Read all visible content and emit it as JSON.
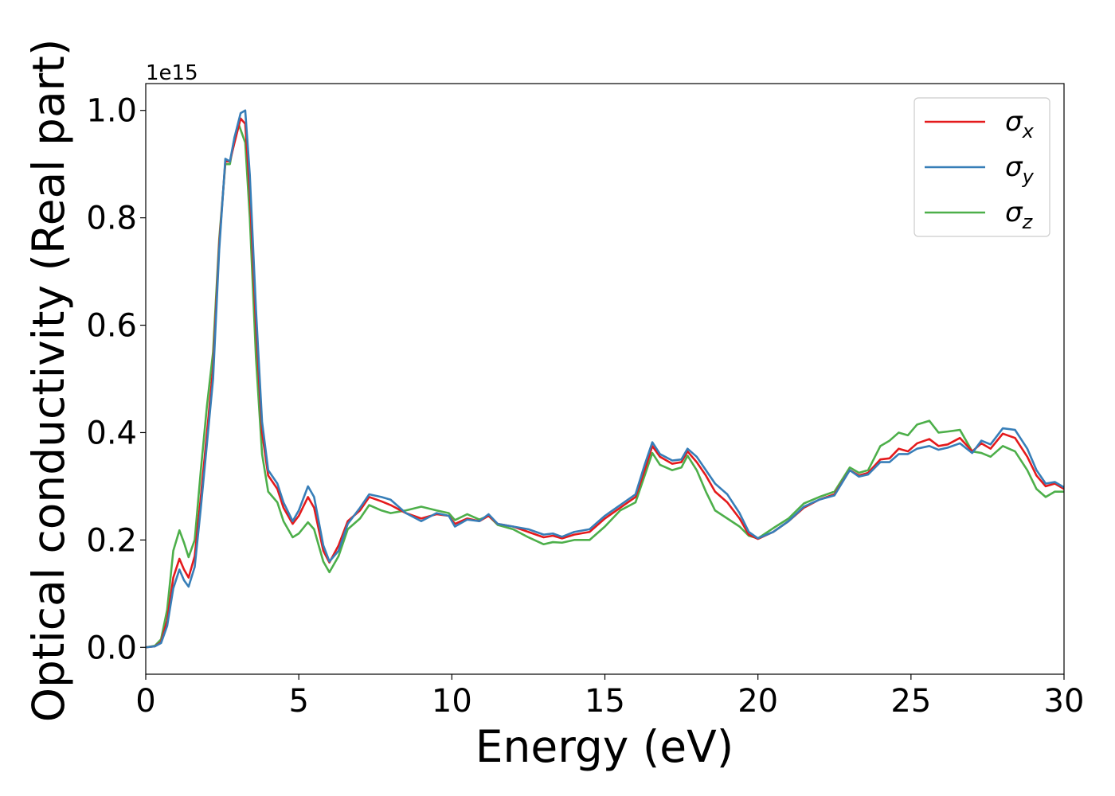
{
  "chart_data": {
    "type": "line",
    "title": "",
    "xlabel": "Energy (eV)",
    "ylabel": "Optical conductivity (Real part)",
    "y_offset_label": "1e15",
    "xlim": [
      0,
      30
    ],
    "ylim": [
      -0.05,
      1.05
    ],
    "x_ticks": [
      0,
      5,
      10,
      15,
      20,
      25,
      30
    ],
    "x_tick_labels": [
      "0",
      "5",
      "10",
      "15",
      "20",
      "25",
      "30"
    ],
    "y_ticks": [
      0.0,
      0.2,
      0.4,
      0.6,
      0.8,
      1.0
    ],
    "y_tick_labels": [
      "0.0",
      "0.2",
      "0.4",
      "0.6",
      "0.8",
      "1.0"
    ],
    "grid": false,
    "legend_position": "top-right",
    "series": [
      {
        "name": "σx",
        "symbol": "σ",
        "subscript": "x",
        "color": "#e41a1c",
        "points": [
          [
            0,
            0
          ],
          [
            0.3,
            0.002
          ],
          [
            0.5,
            0.01
          ],
          [
            0.7,
            0.05
          ],
          [
            0.9,
            0.13
          ],
          [
            1.1,
            0.165
          ],
          [
            1.25,
            0.145
          ],
          [
            1.4,
            0.13
          ],
          [
            1.6,
            0.17
          ],
          [
            1.8,
            0.28
          ],
          [
            2.0,
            0.4
          ],
          [
            2.2,
            0.52
          ],
          [
            2.4,
            0.75
          ],
          [
            2.6,
            0.905
          ],
          [
            2.75,
            0.905
          ],
          [
            2.9,
            0.94
          ],
          [
            3.1,
            0.985
          ],
          [
            3.25,
            0.975
          ],
          [
            3.4,
            0.85
          ],
          [
            3.6,
            0.6
          ],
          [
            3.8,
            0.4
          ],
          [
            4.0,
            0.32
          ],
          [
            4.3,
            0.295
          ],
          [
            4.5,
            0.26
          ],
          [
            4.8,
            0.23
          ],
          [
            5.0,
            0.245
          ],
          [
            5.3,
            0.28
          ],
          [
            5.5,
            0.26
          ],
          [
            5.8,
            0.18
          ],
          [
            6.0,
            0.158
          ],
          [
            6.3,
            0.19
          ],
          [
            6.6,
            0.235
          ],
          [
            7.0,
            0.255
          ],
          [
            7.3,
            0.28
          ],
          [
            7.7,
            0.272
          ],
          [
            8.0,
            0.265
          ],
          [
            8.5,
            0.25
          ],
          [
            9.0,
            0.24
          ],
          [
            9.5,
            0.248
          ],
          [
            9.9,
            0.245
          ],
          [
            10.1,
            0.23
          ],
          [
            10.5,
            0.24
          ],
          [
            10.9,
            0.235
          ],
          [
            11.2,
            0.245
          ],
          [
            11.5,
            0.23
          ],
          [
            12.0,
            0.225
          ],
          [
            12.5,
            0.215
          ],
          [
            13.0,
            0.205
          ],
          [
            13.3,
            0.208
          ],
          [
            13.6,
            0.203
          ],
          [
            14.0,
            0.21
          ],
          [
            14.5,
            0.215
          ],
          [
            15.0,
            0.24
          ],
          [
            15.5,
            0.26
          ],
          [
            16.0,
            0.28
          ],
          [
            16.3,
            0.33
          ],
          [
            16.55,
            0.375
          ],
          [
            16.8,
            0.355
          ],
          [
            17.2,
            0.342
          ],
          [
            17.5,
            0.345
          ],
          [
            17.7,
            0.365
          ],
          [
            18.0,
            0.345
          ],
          [
            18.3,
            0.32
          ],
          [
            18.6,
            0.29
          ],
          [
            19.0,
            0.27
          ],
          [
            19.4,
            0.24
          ],
          [
            19.7,
            0.21
          ],
          [
            20.0,
            0.202
          ],
          [
            20.5,
            0.215
          ],
          [
            21.0,
            0.235
          ],
          [
            21.5,
            0.26
          ],
          [
            22.0,
            0.275
          ],
          [
            22.5,
            0.285
          ],
          [
            23.0,
            0.33
          ],
          [
            23.3,
            0.32
          ],
          [
            23.6,
            0.325
          ],
          [
            24.0,
            0.35
          ],
          [
            24.3,
            0.352
          ],
          [
            24.6,
            0.37
          ],
          [
            24.9,
            0.365
          ],
          [
            25.2,
            0.38
          ],
          [
            25.6,
            0.388
          ],
          [
            25.9,
            0.375
          ],
          [
            26.2,
            0.378
          ],
          [
            26.6,
            0.39
          ],
          [
            27.0,
            0.365
          ],
          [
            27.3,
            0.38
          ],
          [
            27.6,
            0.37
          ],
          [
            28.0,
            0.398
          ],
          [
            28.4,
            0.39
          ],
          [
            28.8,
            0.355
          ],
          [
            29.1,
            0.32
          ],
          [
            29.4,
            0.3
          ],
          [
            29.7,
            0.305
          ],
          [
            30.0,
            0.295
          ]
        ]
      },
      {
        "name": "σy",
        "symbol": "σ",
        "subscript": "y",
        "color": "#377eb8",
        "points": [
          [
            0,
            0
          ],
          [
            0.3,
            0.002
          ],
          [
            0.5,
            0.008
          ],
          [
            0.7,
            0.04
          ],
          [
            0.9,
            0.11
          ],
          [
            1.1,
            0.145
          ],
          [
            1.25,
            0.125
          ],
          [
            1.4,
            0.113
          ],
          [
            1.6,
            0.15
          ],
          [
            1.8,
            0.26
          ],
          [
            2.0,
            0.38
          ],
          [
            2.2,
            0.5
          ],
          [
            2.4,
            0.74
          ],
          [
            2.6,
            0.91
          ],
          [
            2.75,
            0.905
          ],
          [
            2.9,
            0.95
          ],
          [
            3.1,
            0.995
          ],
          [
            3.25,
            1.0
          ],
          [
            3.4,
            0.88
          ],
          [
            3.6,
            0.63
          ],
          [
            3.8,
            0.42
          ],
          [
            4.0,
            0.33
          ],
          [
            4.3,
            0.305
          ],
          [
            4.5,
            0.27
          ],
          [
            4.8,
            0.235
          ],
          [
            5.0,
            0.255
          ],
          [
            5.3,
            0.3
          ],
          [
            5.5,
            0.28
          ],
          [
            5.8,
            0.19
          ],
          [
            6.0,
            0.16
          ],
          [
            6.3,
            0.18
          ],
          [
            6.6,
            0.23
          ],
          [
            7.0,
            0.26
          ],
          [
            7.3,
            0.285
          ],
          [
            7.7,
            0.28
          ],
          [
            8.0,
            0.275
          ],
          [
            8.5,
            0.25
          ],
          [
            9.0,
            0.235
          ],
          [
            9.5,
            0.25
          ],
          [
            9.9,
            0.245
          ],
          [
            10.1,
            0.225
          ],
          [
            10.5,
            0.238
          ],
          [
            10.9,
            0.235
          ],
          [
            11.2,
            0.248
          ],
          [
            11.5,
            0.23
          ],
          [
            12.0,
            0.225
          ],
          [
            12.5,
            0.22
          ],
          [
            13.0,
            0.21
          ],
          [
            13.3,
            0.212
          ],
          [
            13.6,
            0.206
          ],
          [
            14.0,
            0.215
          ],
          [
            14.5,
            0.22
          ],
          [
            15.0,
            0.245
          ],
          [
            15.5,
            0.265
          ],
          [
            16.0,
            0.285
          ],
          [
            16.3,
            0.34
          ],
          [
            16.55,
            0.382
          ],
          [
            16.8,
            0.36
          ],
          [
            17.2,
            0.348
          ],
          [
            17.5,
            0.35
          ],
          [
            17.7,
            0.37
          ],
          [
            18.0,
            0.355
          ],
          [
            18.3,
            0.33
          ],
          [
            18.6,
            0.305
          ],
          [
            19.0,
            0.285
          ],
          [
            19.4,
            0.25
          ],
          [
            19.7,
            0.215
          ],
          [
            20.0,
            0.203
          ],
          [
            20.5,
            0.215
          ],
          [
            21.0,
            0.235
          ],
          [
            21.5,
            0.262
          ],
          [
            22.0,
            0.275
          ],
          [
            22.5,
            0.283
          ],
          [
            23.0,
            0.33
          ],
          [
            23.3,
            0.318
          ],
          [
            23.6,
            0.322
          ],
          [
            24.0,
            0.345
          ],
          [
            24.3,
            0.345
          ],
          [
            24.6,
            0.36
          ],
          [
            24.9,
            0.36
          ],
          [
            25.2,
            0.37
          ],
          [
            25.6,
            0.375
          ],
          [
            25.9,
            0.368
          ],
          [
            26.2,
            0.372
          ],
          [
            26.6,
            0.38
          ],
          [
            27.0,
            0.362
          ],
          [
            27.3,
            0.385
          ],
          [
            27.6,
            0.378
          ],
          [
            28.0,
            0.408
          ],
          [
            28.4,
            0.405
          ],
          [
            28.8,
            0.37
          ],
          [
            29.1,
            0.33
          ],
          [
            29.4,
            0.305
          ],
          [
            29.7,
            0.308
          ],
          [
            30.0,
            0.298
          ]
        ]
      },
      {
        "name": "σz",
        "symbol": "σ",
        "subscript": "z",
        "color": "#4daf4a",
        "points": [
          [
            0,
            0
          ],
          [
            0.3,
            0.003
          ],
          [
            0.5,
            0.015
          ],
          [
            0.7,
            0.07
          ],
          [
            0.9,
            0.18
          ],
          [
            1.1,
            0.218
          ],
          [
            1.25,
            0.195
          ],
          [
            1.4,
            0.168
          ],
          [
            1.6,
            0.2
          ],
          [
            1.8,
            0.33
          ],
          [
            2.0,
            0.45
          ],
          [
            2.2,
            0.55
          ],
          [
            2.4,
            0.76
          ],
          [
            2.6,
            0.9
          ],
          [
            2.75,
            0.9
          ],
          [
            2.9,
            0.95
          ],
          [
            3.05,
            0.972
          ],
          [
            3.25,
            0.94
          ],
          [
            3.4,
            0.8
          ],
          [
            3.6,
            0.54
          ],
          [
            3.8,
            0.36
          ],
          [
            4.0,
            0.29
          ],
          [
            4.3,
            0.27
          ],
          [
            4.5,
            0.235
          ],
          [
            4.8,
            0.205
          ],
          [
            5.0,
            0.212
          ],
          [
            5.3,
            0.233
          ],
          [
            5.5,
            0.22
          ],
          [
            5.8,
            0.16
          ],
          [
            6.0,
            0.14
          ],
          [
            6.3,
            0.17
          ],
          [
            6.6,
            0.22
          ],
          [
            7.0,
            0.24
          ],
          [
            7.3,
            0.265
          ],
          [
            7.7,
            0.255
          ],
          [
            8.0,
            0.25
          ],
          [
            8.5,
            0.255
          ],
          [
            9.0,
            0.262
          ],
          [
            9.5,
            0.255
          ],
          [
            9.9,
            0.25
          ],
          [
            10.1,
            0.237
          ],
          [
            10.5,
            0.248
          ],
          [
            10.9,
            0.238
          ],
          [
            11.2,
            0.245
          ],
          [
            11.5,
            0.228
          ],
          [
            12.0,
            0.22
          ],
          [
            12.5,
            0.205
          ],
          [
            13.0,
            0.192
          ],
          [
            13.3,
            0.196
          ],
          [
            13.6,
            0.195
          ],
          [
            14.0,
            0.2
          ],
          [
            14.5,
            0.2
          ],
          [
            15.0,
            0.225
          ],
          [
            15.5,
            0.255
          ],
          [
            16.0,
            0.27
          ],
          [
            16.3,
            0.32
          ],
          [
            16.55,
            0.362
          ],
          [
            16.8,
            0.34
          ],
          [
            17.2,
            0.33
          ],
          [
            17.5,
            0.335
          ],
          [
            17.7,
            0.357
          ],
          [
            18.0,
            0.33
          ],
          [
            18.3,
            0.29
          ],
          [
            18.6,
            0.255
          ],
          [
            19.0,
            0.24
          ],
          [
            19.4,
            0.225
          ],
          [
            19.7,
            0.208
          ],
          [
            20.0,
            0.203
          ],
          [
            20.5,
            0.222
          ],
          [
            21.0,
            0.24
          ],
          [
            21.5,
            0.268
          ],
          [
            22.0,
            0.28
          ],
          [
            22.5,
            0.29
          ],
          [
            23.0,
            0.335
          ],
          [
            23.3,
            0.325
          ],
          [
            23.6,
            0.33
          ],
          [
            24.0,
            0.375
          ],
          [
            24.3,
            0.385
          ],
          [
            24.6,
            0.4
          ],
          [
            24.9,
            0.395
          ],
          [
            25.2,
            0.415
          ],
          [
            25.6,
            0.422
          ],
          [
            25.9,
            0.4
          ],
          [
            26.2,
            0.402
          ],
          [
            26.6,
            0.405
          ],
          [
            27.0,
            0.365
          ],
          [
            27.3,
            0.362
          ],
          [
            27.6,
            0.355
          ],
          [
            28.0,
            0.375
          ],
          [
            28.4,
            0.365
          ],
          [
            28.8,
            0.33
          ],
          [
            29.1,
            0.295
          ],
          [
            29.4,
            0.28
          ],
          [
            29.7,
            0.29
          ],
          [
            30.0,
            0.29
          ]
        ]
      }
    ]
  }
}
